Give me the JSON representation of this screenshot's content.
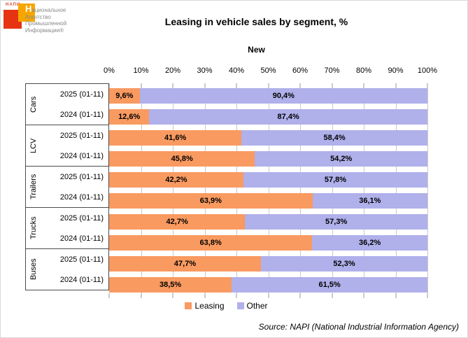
{
  "logo": {
    "brand_small": "НАПИ",
    "org_lines": [
      "Национальное",
      "Агентство",
      "Промышленной",
      "Информации®"
    ],
    "colors": {
      "red": "#e63312",
      "orange": "#f7a600",
      "text_gray": "#8a8a8a"
    }
  },
  "chart_data": {
    "type": "bar",
    "orientation": "horizontal",
    "stacked": true,
    "title": "Leasing in vehicle sales by segment, %",
    "subtitle": "New",
    "axis_position": "top",
    "axis_range": [
      0,
      100
    ],
    "axis_ticks": [
      "0%",
      "10%",
      "20%",
      "30%",
      "40%",
      "50%",
      "60%",
      "70%",
      "80%",
      "90%",
      "100%"
    ],
    "grid": true,
    "legend_position": "bottom",
    "series_colors": {
      "leasing": "#f99a60",
      "other": "#b0b0eb"
    },
    "legend": [
      {
        "key": "leasing",
        "name": "Leasing"
      },
      {
        "key": "other",
        "name": "Other"
      }
    ],
    "groups": [
      {
        "segment": "Cars",
        "rows": [
          {
            "period": "2025 (01-11)",
            "leasing": 9.6,
            "other": 90.4,
            "leasing_label": "9,6%",
            "other_label": "90,4%"
          },
          {
            "period": "2024 (01-11)",
            "leasing": 12.6,
            "other": 87.4,
            "leasing_label": "12,6%",
            "other_label": "87,4%"
          }
        ]
      },
      {
        "segment": "LCV",
        "rows": [
          {
            "period": "2025 (01-11)",
            "leasing": 41.6,
            "other": 58.4,
            "leasing_label": "41,6%",
            "other_label": "58,4%"
          },
          {
            "period": "2024 (01-11)",
            "leasing": 45.8,
            "other": 54.2,
            "leasing_label": "45,8%",
            "other_label": "54,2%"
          }
        ]
      },
      {
        "segment": "Trailers",
        "rows": [
          {
            "period": "2025 (01-11)",
            "leasing": 42.2,
            "other": 57.8,
            "leasing_label": "42,2%",
            "other_label": "57,8%"
          },
          {
            "period": "2024 (01-11)",
            "leasing": 63.9,
            "other": 36.1,
            "leasing_label": "63,9%",
            "other_label": "36,1%"
          }
        ]
      },
      {
        "segment": "Trucks",
        "rows": [
          {
            "period": "2025 (01-11)",
            "leasing": 42.7,
            "other": 57.3,
            "leasing_label": "42,7%",
            "other_label": "57,3%"
          },
          {
            "period": "2024 (01-11)",
            "leasing": 63.8,
            "other": 36.2,
            "leasing_label": "63,8%",
            "other_label": "36,2%"
          }
        ]
      },
      {
        "segment": "Buses",
        "rows": [
          {
            "period": "2025 (01-11)",
            "leasing": 47.7,
            "other": 52.3,
            "leasing_label": "47,7%",
            "other_label": "52,3%"
          },
          {
            "period": "2024 (01-11)",
            "leasing": 38.5,
            "other": 61.5,
            "leasing_label": "38,5%",
            "other_label": "61,5%"
          }
        ]
      }
    ],
    "source": "Source: NAPI (National Industrial Information Agency)"
  }
}
